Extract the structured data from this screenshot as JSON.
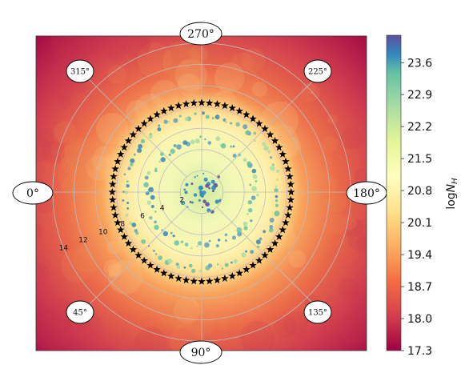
{
  "chart_data": {
    "type": "heatmap",
    "projection": "polar-sky",
    "title": "",
    "colormap": "Spectral_r",
    "colorbar": {
      "label_main": "log",
      "label_italic": "N",
      "label_sub": "H",
      "range": [
        17.3,
        24.2
      ],
      "ticks": [
        17.3,
        18.0,
        18.7,
        19.4,
        20.1,
        20.8,
        21.5,
        22.2,
        22.9,
        23.6
      ],
      "tick_labels": [
        "17.3",
        "18.0",
        "18.7",
        "19.4",
        "20.1",
        "20.8",
        "21.5",
        "22.2",
        "22.9",
        "23.6"
      ]
    },
    "azimuth_labels": [
      {
        "angle": 270,
        "text": "270°"
      },
      {
        "angle": 225,
        "text": "225°"
      },
      {
        "angle": 180,
        "text": "180°"
      },
      {
        "angle": 135,
        "text": "135°"
      },
      {
        "angle": 90,
        "text": "90°"
      },
      {
        "angle": 45,
        "text": "45°"
      },
      {
        "angle": 0,
        "text": "0°"
      },
      {
        "angle": 315,
        "text": "315°"
      }
    ],
    "radial_rings": [
      2,
      4,
      6,
      8,
      10,
      12,
      14
    ],
    "radial_labels": [
      "2",
      "4",
      "6",
      "8",
      "10",
      "12",
      "14"
    ],
    "radial_max": 16,
    "spokes_every_deg": 45,
    "star_ring": {
      "radius": 8.4,
      "count": 72,
      "marker": "star",
      "color": "#000000"
    },
    "grid": true,
    "legend": "none"
  }
}
